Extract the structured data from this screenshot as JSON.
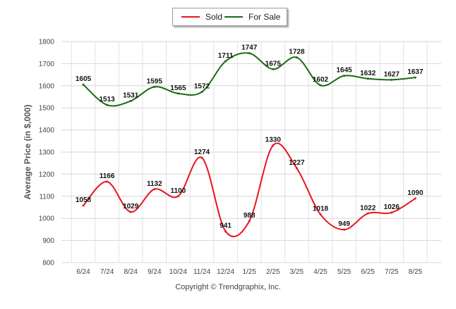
{
  "chart_data": {
    "type": "line",
    "title": "",
    "xlabel": "",
    "ylabel": "Average Price (in $,000)",
    "ylim": [
      800,
      1800
    ],
    "yticks": [
      800,
      900,
      1000,
      1100,
      1200,
      1300,
      1400,
      1500,
      1600,
      1700,
      1800
    ],
    "grid": true,
    "legend_position": "top",
    "categories": [
      "6/24",
      "7/24",
      "8/24",
      "9/24",
      "10/24",
      "11/24",
      "12/24",
      "1/25",
      "2/25",
      "3/25",
      "4/25",
      "5/25",
      "6/25",
      "7/25",
      "8/25"
    ],
    "series": [
      {
        "name": "Sold",
        "color": "#e8141e",
        "values": [
          1058,
          1166,
          1029,
          1132,
          1100,
          1274,
          941,
          988,
          1330,
          1227,
          1018,
          949,
          1022,
          1026,
          1090
        ]
      },
      {
        "name": "For Sale",
        "color": "#1a6b15",
        "values": [
          1605,
          1513,
          1531,
          1595,
          1565,
          1572,
          1711,
          1747,
          1675,
          1728,
          1602,
          1645,
          1632,
          1627,
          1637
        ]
      }
    ]
  },
  "footer": {
    "credit": "Copyright © Trendgraphix, Inc."
  }
}
